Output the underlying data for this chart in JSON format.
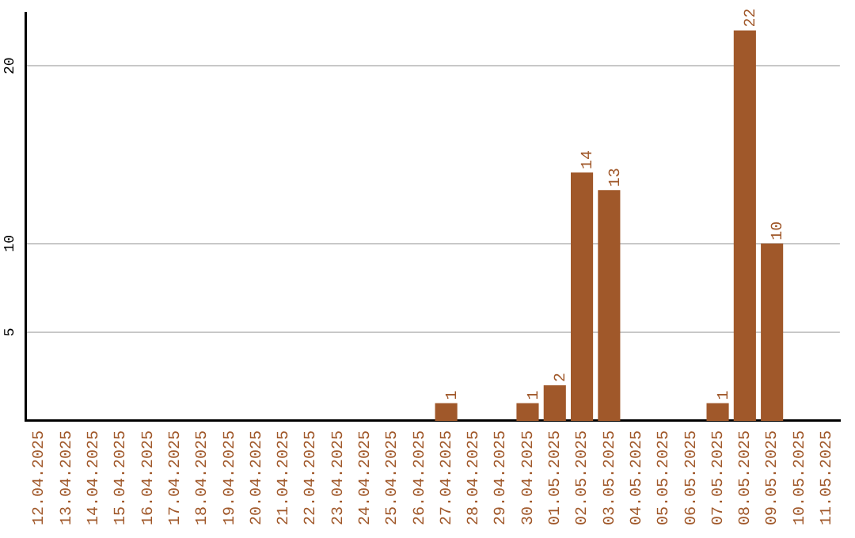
{
  "chart_data": {
    "type": "bar",
    "categories": [
      "12.04.2025",
      "13.04.2025",
      "14.04.2025",
      "15.04.2025",
      "16.04.2025",
      "17.04.2025",
      "18.04.2025",
      "19.04.2025",
      "20.04.2025",
      "21.04.2025",
      "22.04.2025",
      "23.04.2025",
      "24.04.2025",
      "25.04.2025",
      "26.04.2025",
      "27.04.2025",
      "28.04.2025",
      "29.04.2025",
      "30.04.2025",
      "01.05.2025",
      "02.05.2025",
      "03.05.2025",
      "04.05.2025",
      "05.05.2025",
      "06.05.2025",
      "07.05.2025",
      "08.05.2025",
      "09.05.2025",
      "10.05.2025",
      "11.05.2025"
    ],
    "values": [
      0,
      0,
      0,
      0,
      0,
      0,
      0,
      0,
      0,
      0,
      0,
      0,
      0,
      0,
      0,
      1,
      0,
      0,
      1,
      2,
      14,
      13,
      0,
      0,
      0,
      1,
      22,
      10,
      0,
      0
    ],
    "value_labels": [
      null,
      null,
      null,
      null,
      null,
      null,
      null,
      null,
      null,
      null,
      null,
      null,
      null,
      null,
      null,
      "1",
      null,
      null,
      "1",
      "2",
      "14",
      "13",
      null,
      null,
      null,
      "1",
      "22",
      "10",
      null,
      null
    ],
    "color": "#a0582a",
    "ylim": [
      0,
      23
    ],
    "yticks": [
      5,
      10,
      20
    ],
    "grid": "y",
    "legend": false
  }
}
